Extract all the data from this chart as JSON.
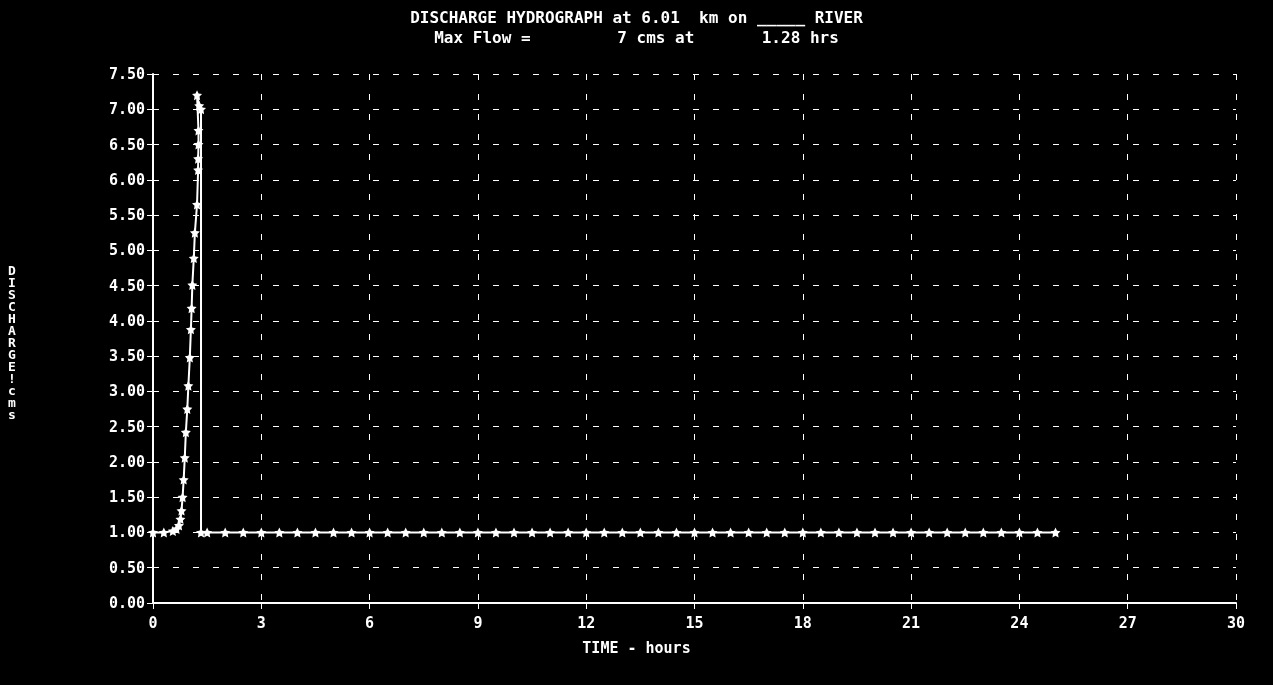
{
  "chart_data": {
    "type": "line",
    "title": "DISCHARGE HYDROGRAPH at 6.01  km on _____ RIVER",
    "subtitle": "Max Flow =         7 cms at       1.28 hrs",
    "xlabel": "TIME - hours",
    "ylabel": "DISCHARGE ! cms",
    "x": [
      0,
      0.3,
      0.55,
      0.65,
      0.72,
      0.76,
      0.79,
      0.82,
      0.85,
      0.88,
      0.91,
      0.95,
      0.98,
      1.02,
      1.05,
      1.07,
      1.09,
      1.13,
      1.16,
      1.22,
      1.25,
      1.25,
      1.26,
      1.26,
      1.22,
      1.28,
      1.33,
      1.33,
      1.5,
      2,
      2.5,
      3,
      3.5,
      4,
      4.5,
      5,
      5.5,
      6,
      6.5,
      7,
      7.5,
      8,
      8.5,
      9,
      9.5,
      10,
      10.5,
      11,
      11.5,
      12,
      12.5,
      13,
      13.5,
      14,
      14.5,
      15,
      15.5,
      16,
      16.5,
      17,
      17.5,
      18,
      18.5,
      19,
      19.5,
      20,
      20.5,
      21,
      21.5,
      22,
      22.5,
      23,
      23.5,
      24,
      24.5,
      25
    ],
    "series": [
      {
        "color": "#ffffff",
        "values": [
          1.0,
          1.0,
          1.02,
          1.05,
          1.1,
          1.19,
          1.31,
          1.5,
          1.75,
          2.06,
          2.42,
          2.75,
          3.08,
          3.48,
          3.88,
          4.18,
          4.51,
          4.89,
          5.25,
          5.65,
          6.14,
          6.3,
          6.5,
          6.7,
          7.2,
          7.05,
          7.0,
          1.0,
          1.0,
          1.0,
          1.0,
          1.0,
          1.0,
          1.0,
          1.0,
          1.0,
          1.0,
          1.0,
          1.0,
          1.0,
          1.0,
          1.0,
          1.0,
          1.0,
          1.0,
          1.0,
          1.0,
          1.0,
          1.0,
          1.0,
          1.0,
          1.0,
          1.0,
          1.0,
          1.0,
          1.0,
          1.0,
          1.0,
          1.0,
          1.0,
          1.0,
          1.0,
          1.0,
          1.0,
          1.0,
          1.0,
          1.0,
          1.0,
          1.0,
          1.0,
          1.0,
          1.0,
          1.0,
          1.0,
          1.0,
          1.0
        ]
      }
    ],
    "xlim": [
      0,
      30
    ],
    "xticks": [
      0,
      3,
      6,
      9,
      12,
      15,
      18,
      21,
      24,
      27,
      30
    ],
    "ylim": [
      0,
      7.5
    ],
    "yticks": [
      {
        "value": 0,
        "label": "0.00"
      },
      {
        "value": 0.5,
        "label": "0.50"
      },
      {
        "value": 1,
        "label": "1.00"
      },
      {
        "value": 1.5,
        "label": "1.50"
      },
      {
        "value": 2,
        "label": "2.00"
      },
      {
        "value": 2.5,
        "label": "2.50"
      },
      {
        "value": 3,
        "label": "3.00"
      },
      {
        "value": 3.5,
        "label": "3.50"
      },
      {
        "value": 4,
        "label": "4.00"
      },
      {
        "value": 4.5,
        "label": "4.50"
      },
      {
        "value": 5,
        "label": "5.00"
      },
      {
        "value": 5.5,
        "label": "5.50"
      },
      {
        "value": 6,
        "label": "6.00"
      },
      {
        "value": 6.5,
        "label": "6.50"
      },
      {
        "value": 7,
        "label": "7.00"
      },
      {
        "value": 7.5,
        "label": "7.50"
      }
    ],
    "grid": true,
    "marker": "star",
    "line_style": "solid"
  }
}
